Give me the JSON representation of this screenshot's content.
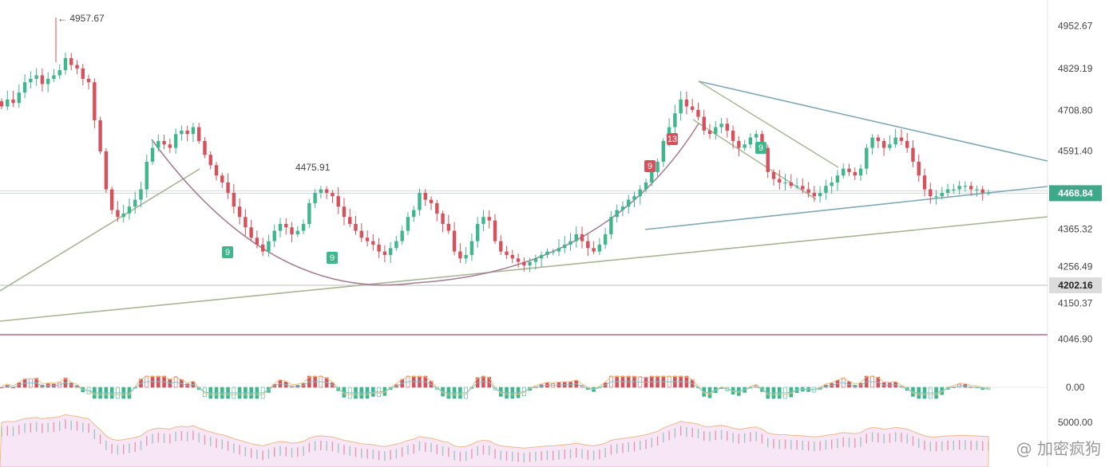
{
  "chart_data": {
    "type": "candlestick",
    "y_axis": {
      "ticks": [
        "4952.67",
        "4829.19",
        "4708.80",
        "4591.40",
        "4365.32",
        "4256.49",
        "4150.37",
        "4046.90"
      ],
      "ylim": [
        3990,
        5005
      ]
    },
    "current_price": "4468.84",
    "marked_level": "4202.16",
    "high_label": "4957.67",
    "level_label": "4475.91",
    "macd_zero_label": "0.00",
    "volume_label": "5000.00",
    "td_counts": [
      "9",
      "9",
      "9",
      "13",
      "9"
    ],
    "closes": [
      4720,
      4740,
      4730,
      4760,
      4790,
      4800,
      4810,
      4785,
      4800,
      4810,
      4825,
      4860,
      4840,
      4830,
      4800,
      4790,
      4680,
      4590,
      4480,
      4420,
      4400,
      4410,
      4430,
      4450,
      4480,
      4560,
      4600,
      4620,
      4610,
      4600,
      4640,
      4650,
      4640,
      4660,
      4620,
      4580,
      4550,
      4520,
      4500,
      4470,
      4430,
      4400,
      4370,
      4340,
      4320,
      4300,
      4330,
      4360,
      4380,
      4370,
      4350,
      4360,
      4380,
      4440,
      4470,
      4480,
      4470,
      4460,
      4430,
      4400,
      4380,
      4360,
      4340,
      4330,
      4320,
      4300,
      4290,
      4310,
      4330,
      4360,
      4400,
      4420,
      4470,
      4450,
      4440,
      4410,
      4380,
      4360,
      4300,
      4280,
      4290,
      4330,
      4380,
      4400,
      4390,
      4330,
      4300,
      4290,
      4280,
      4270,
      4260,
      4270,
      4280,
      4290,
      4300,
      4300,
      4310,
      4320,
      4330,
      4350,
      4330,
      4310,
      4300,
      4320,
      4350,
      4400,
      4420,
      4430,
      4450,
      4460,
      4480,
      4500,
      4530,
      4560,
      4620,
      4660,
      4700,
      4740,
      4720,
      4710,
      4690,
      4650,
      4640,
      4660,
      4670,
      4650,
      4620,
      4600,
      4610,
      4630,
      4640,
      4600,
      4530,
      4510,
      4500,
      4500,
      4490,
      4490,
      4480,
      4470,
      4460,
      4470,
      4490,
      4500,
      4520,
      4540,
      4530,
      4520,
      4540,
      4600,
      4630,
      4620,
      4600,
      4610,
      4630,
      4620,
      4600,
      4560,
      4520,
      4480,
      4460,
      4460,
      4470,
      4480,
      4480,
      4490,
      4490,
      4480,
      4480,
      4470,
      4470
    ]
  },
  "watermark": "@ 加密疯狗"
}
